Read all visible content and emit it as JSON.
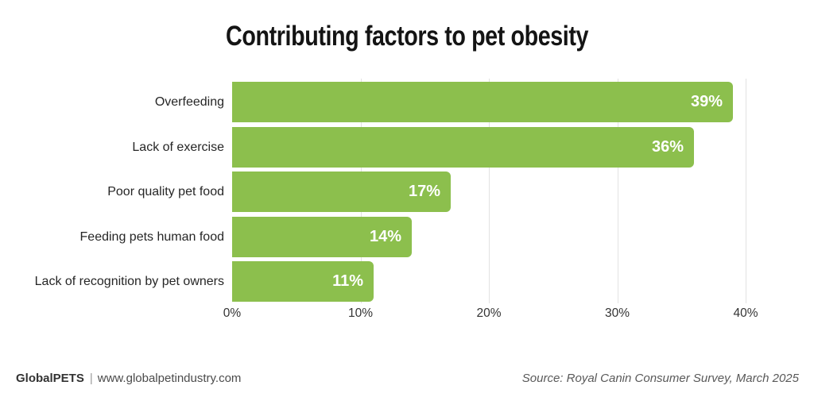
{
  "title": "Contributing factors to pet obesity",
  "chart_data": {
    "type": "bar",
    "orientation": "horizontal",
    "title": "Contributing factors to pet obesity",
    "categories": [
      "Overfeeding",
      "Lack of exercise",
      "Poor quality pet food",
      "Feeding pets human food",
      "Lack of recognition by pet owners"
    ],
    "values": [
      39,
      36,
      17,
      14,
      11
    ],
    "value_labels": [
      "39%",
      "36%",
      "17%",
      "14%",
      "11%"
    ],
    "x_ticks": [
      "0%",
      "10%",
      "20%",
      "30%",
      "40%"
    ],
    "xlim": [
      0,
      40
    ],
    "xlabel": "",
    "ylabel": "",
    "grid": "vertical",
    "legend": "none",
    "bar_color": "#8CBF4D",
    "value_label_color": "#FFFFFF",
    "gridline_color": "#E2E2E2"
  },
  "footer": {
    "brand": "GlobalPETS",
    "separator": "|",
    "website": "www.globalpetindustry.com",
    "source": "Source: Royal Canin Consumer Survey, March 2025"
  }
}
